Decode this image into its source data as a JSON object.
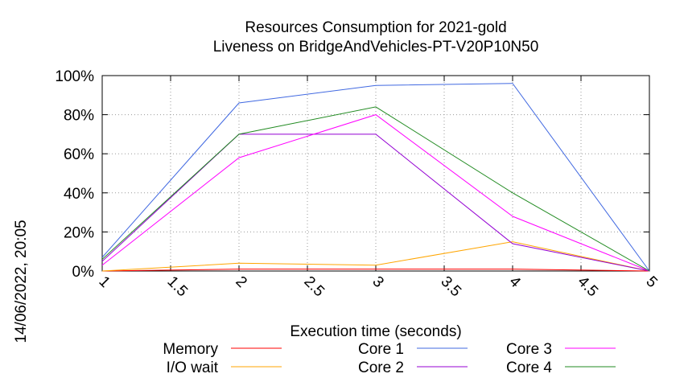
{
  "chart_data": {
    "type": "line",
    "title_line1": "Resources Consumption for 2021-gold",
    "title_line2": "Liveness on BridgeAndVehicles-PT-V20P10N50",
    "xlabel": "Execution time (seconds)",
    "ylabel": "",
    "side_label": "14/06/2022, 20:05",
    "xlim": [
      1,
      5
    ],
    "ylim": [
      0,
      100
    ],
    "x_ticks": [
      1,
      1.5,
      2,
      2.5,
      3,
      3.5,
      4,
      4.5,
      5
    ],
    "x_tick_labels": [
      "1",
      "1.5",
      "2",
      "2.5",
      "3",
      "3.5",
      "4",
      "4.5",
      "5"
    ],
    "y_ticks": [
      0,
      20,
      40,
      60,
      80,
      100
    ],
    "y_tick_labels": [
      "0%",
      "20%",
      "40%",
      "60%",
      "80%",
      "100%"
    ],
    "grid": true,
    "legend_position": "bottom",
    "x": [
      1,
      2,
      3,
      4,
      5
    ],
    "series": [
      {
        "name": "Memory",
        "color": "#ff0000",
        "values": [
          0,
          1,
          1,
          1,
          0
        ]
      },
      {
        "name": "I/O wait",
        "color": "#ffa500",
        "values": [
          0,
          4,
          3,
          15,
          0
        ]
      },
      {
        "name": "Core 1",
        "color": "#4169e1",
        "values": [
          7,
          86,
          95,
          96,
          0
        ]
      },
      {
        "name": "Core 2",
        "color": "#9400d3",
        "values": [
          5,
          70,
          70,
          14,
          0
        ]
      },
      {
        "name": "Core 3",
        "color": "#ff00ff",
        "values": [
          3,
          58,
          80,
          28,
          0
        ]
      },
      {
        "name": "Core 4",
        "color": "#228b22",
        "values": [
          6,
          70,
          84,
          40,
          0
        ]
      }
    ]
  }
}
